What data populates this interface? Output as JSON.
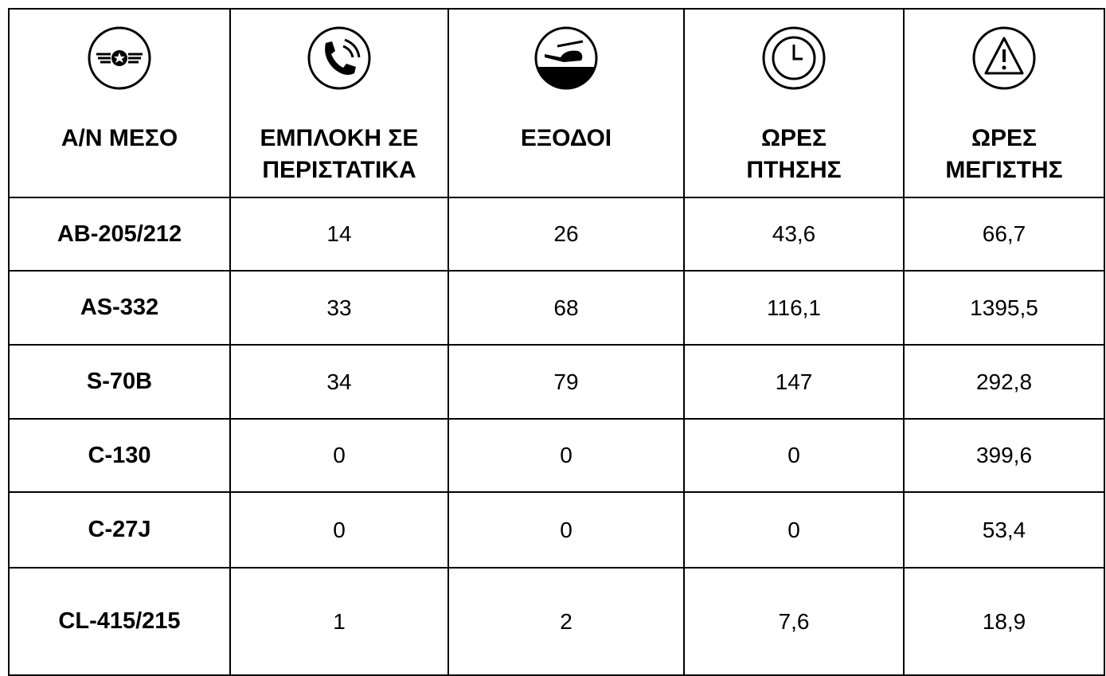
{
  "table": {
    "header": [
      "Α/Ν ΜΕΣΟ",
      "ΕΜΠΛΟΚΗ ΣΕ\nΠΕΡΙΣΤΑΤΙΚΑ",
      "ΕΞΟΔΟΙ",
      "ΩΡΕΣ\nΠΤΗΣΗΣ",
      "ΩΡΕΣ\nΜΕΓΙΣΤΗΣ"
    ],
    "rows": [
      [
        "AB-205/212",
        "14",
        "26",
        "43,6",
        "66,7"
      ],
      [
        "AS-332",
        "33",
        "68",
        "116,1",
        "1395,5"
      ],
      [
        "S-70B",
        "34",
        "79",
        "147",
        "292,8"
      ],
      [
        "C-130",
        "0",
        "0",
        "0",
        "399,6"
      ],
      [
        "C-27J",
        "0",
        "0",
        "0",
        "53,4"
      ],
      [
        "CL-415/215",
        "1",
        "2",
        "7,6",
        "18,9"
      ]
    ]
  }
}
